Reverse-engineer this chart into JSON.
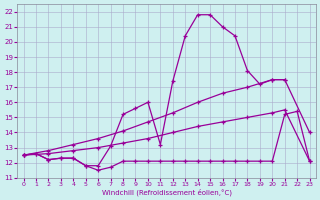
{
  "xlabel": "Windchill (Refroidissement éolien,°C)",
  "bg_color": "#cff0f0",
  "grid_color": "#aaaacc",
  "line_color": "#990099",
  "xlim": [
    -0.5,
    23.5
  ],
  "ylim": [
    11,
    22.5
  ],
  "xticks": [
    0,
    1,
    2,
    3,
    4,
    5,
    6,
    7,
    8,
    9,
    10,
    11,
    12,
    13,
    14,
    15,
    16,
    17,
    18,
    19,
    20,
    21,
    22,
    23
  ],
  "yticks": [
    11,
    12,
    13,
    14,
    15,
    16,
    17,
    18,
    19,
    20,
    21,
    22
  ],
  "line1_x": [
    0,
    1,
    2,
    3,
    4,
    5,
    6,
    7,
    8,
    9,
    10,
    11,
    12,
    13,
    14,
    15,
    16,
    17,
    18,
    19,
    20,
    21
  ],
  "line1_y": [
    12.5,
    12.6,
    12.2,
    12.3,
    12.3,
    11.8,
    11.8,
    13.1,
    15.2,
    15.6,
    16.0,
    13.2,
    17.4,
    20.4,
    21.8,
    21.8,
    21.0,
    20.4,
    18.1,
    17.2,
    17.5,
    17.5
  ],
  "line2_x": [
    0,
    1,
    2,
    3,
    4,
    5,
    6,
    7,
    8,
    9,
    10,
    11,
    12,
    13,
    14,
    15,
    16,
    17,
    18,
    19,
    20,
    21,
    22,
    23
  ],
  "line2_y": [
    12.5,
    12.6,
    12.2,
    12.3,
    12.3,
    11.8,
    11.5,
    11.7,
    12.1,
    12.1,
    12.1,
    12.1,
    12.1,
    12.1,
    12.1,
    12.1,
    12.1,
    12.1,
    12.1,
    12.1,
    12.1,
    15.2,
    15.4,
    12.1
  ],
  "line3_x": [
    0,
    2,
    4,
    6,
    8,
    10,
    12,
    14,
    16,
    18,
    20,
    21,
    23
  ],
  "line3_y": [
    12.5,
    12.8,
    13.2,
    13.6,
    14.1,
    14.7,
    15.3,
    16.0,
    16.6,
    17.0,
    17.5,
    17.5,
    14.0
  ],
  "line4_x": [
    0,
    2,
    4,
    6,
    8,
    10,
    12,
    14,
    16,
    18,
    20,
    21,
    23
  ],
  "line4_y": [
    12.5,
    12.6,
    12.8,
    13.0,
    13.3,
    13.6,
    14.0,
    14.4,
    14.7,
    15.0,
    15.3,
    15.5,
    12.1
  ]
}
